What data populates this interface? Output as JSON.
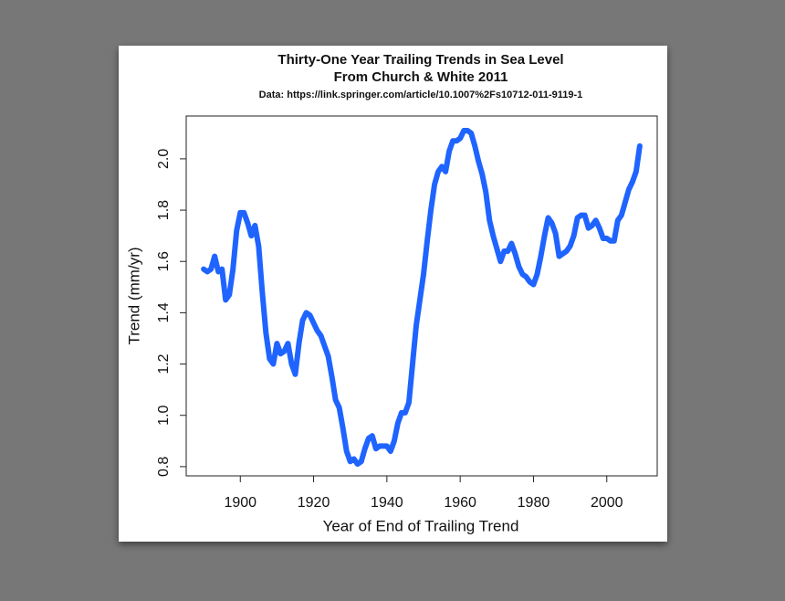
{
  "chart_data": {
    "type": "line",
    "title": "Thirty-One Year Trailing Trends in Sea Level",
    "subtitle": "From Church & White 2011",
    "source": "Data: https://link.springer.com/article/10.1007%2Fs10712-011-9119-1",
    "x_label": "Year of End of Trailing Trend",
    "y_label": "Trend (mm/yr)",
    "x": [
      1890,
      1891,
      1892,
      1893,
      1894,
      1895,
      1896,
      1897,
      1898,
      1899,
      1900,
      1901,
      1902,
      1903,
      1904,
      1905,
      1906,
      1907,
      1908,
      1909,
      1910,
      1911,
      1912,
      1913,
      1914,
      1915,
      1916,
      1917,
      1918,
      1919,
      1920,
      1921,
      1922,
      1923,
      1924,
      1925,
      1926,
      1927,
      1928,
      1929,
      1930,
      1931,
      1932,
      1933,
      1934,
      1935,
      1936,
      1937,
      1938,
      1939,
      1940,
      1941,
      1942,
      1943,
      1944,
      1945,
      1946,
      1947,
      1948,
      1949,
      1950,
      1951,
      1952,
      1953,
      1954,
      1955,
      1956,
      1957,
      1958,
      1959,
      1960,
      1961,
      1962,
      1963,
      1964,
      1965,
      1966,
      1967,
      1968,
      1969,
      1970,
      1971,
      1972,
      1973,
      1974,
      1975,
      1976,
      1977,
      1978,
      1979,
      1980,
      1981,
      1982,
      1983,
      1984,
      1985,
      1986,
      1987,
      1988,
      1989,
      1990,
      1991,
      1992,
      1993,
      1994,
      1995,
      1996,
      1997,
      1998,
      1999,
      2000,
      2001,
      2002,
      2003,
      2004,
      2005,
      2006,
      2007,
      2008,
      2009
    ],
    "values": [
      1.57,
      1.56,
      1.57,
      1.62,
      1.56,
      1.57,
      1.45,
      1.47,
      1.57,
      1.72,
      1.79,
      1.79,
      1.75,
      1.7,
      1.74,
      1.66,
      1.48,
      1.32,
      1.22,
      1.2,
      1.28,
      1.24,
      1.25,
      1.28,
      1.2,
      1.16,
      1.28,
      1.37,
      1.4,
      1.39,
      1.36,
      1.33,
      1.31,
      1.27,
      1.23,
      1.15,
      1.06,
      1.03,
      0.95,
      0.86,
      0.82,
      0.83,
      0.81,
      0.82,
      0.87,
      0.91,
      0.92,
      0.87,
      0.88,
      0.88,
      0.88,
      0.86,
      0.9,
      0.97,
      1.01,
      1.01,
      1.05,
      1.2,
      1.35,
      1.45,
      1.55,
      1.68,
      1.8,
      1.9,
      1.95,
      1.97,
      1.95,
      2.03,
      2.07,
      2.07,
      2.08,
      2.11,
      2.11,
      2.1,
      2.05,
      1.99,
      1.94,
      1.87,
      1.76,
      1.7,
      1.65,
      1.6,
      1.64,
      1.64,
      1.67,
      1.63,
      1.58,
      1.55,
      1.54,
      1.52,
      1.51,
      1.55,
      1.62,
      1.7,
      1.77,
      1.75,
      1.71,
      1.62,
      1.63,
      1.64,
      1.66,
      1.7,
      1.77,
      1.78,
      1.78,
      1.73,
      1.74,
      1.76,
      1.73,
      1.69,
      1.69,
      1.68,
      1.68,
      1.76,
      1.78,
      1.83,
      1.88,
      1.91,
      1.95,
      2.05
    ],
    "color": "#1f64ff",
    "xlim": [
      1885.24,
      2013.76
    ],
    "xticks": [
      1900,
      1920,
      1940,
      1960,
      1980,
      2000
    ],
    "ylim": [
      0.764,
      2.167
    ],
    "yticks": [
      0.8,
      {
        "value": 1,
        "label": "1.0"
      },
      1.2,
      1.4,
      1.6,
      1.8,
      {
        "value": 2,
        "label": "2.0"
      }
    ]
  }
}
